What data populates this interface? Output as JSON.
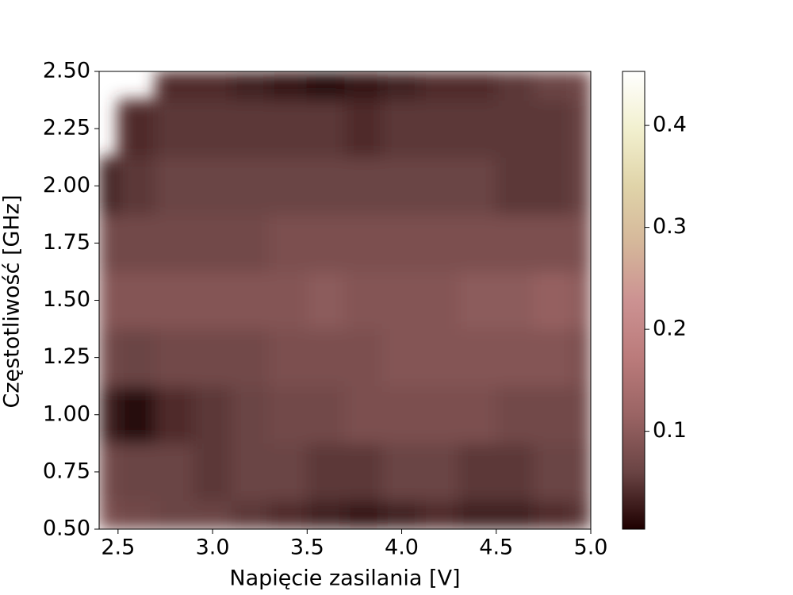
{
  "chart_data": {
    "type": "heatmap",
    "xlabel": "Napięcie zasilania [V]",
    "ylabel": "Częstotliwość [GHz]",
    "x": [
      2.4,
      2.6,
      2.8,
      3.0,
      3.2,
      3.4,
      3.6,
      3.8,
      4.0,
      4.2,
      4.4,
      4.6,
      4.8,
      5.0
    ],
    "y": [
      0.5,
      0.75,
      1.0,
      1.25,
      1.5,
      1.75,
      2.0,
      2.25,
      2.5
    ],
    "z": [
      [
        0.08,
        0.07,
        0.06,
        0.06,
        0.05,
        0.04,
        0.03,
        0.02,
        0.03,
        0.04,
        0.03,
        0.03,
        0.04,
        0.05
      ],
      [
        0.07,
        0.06,
        0.06,
        0.05,
        0.06,
        0.06,
        0.05,
        0.05,
        0.06,
        0.06,
        0.05,
        0.05,
        0.06,
        0.06
      ],
      [
        0.03,
        0.01,
        0.04,
        0.05,
        0.06,
        0.07,
        0.07,
        0.08,
        0.08,
        0.08,
        0.08,
        0.07,
        0.07,
        0.07
      ],
      [
        0.07,
        0.06,
        0.07,
        0.07,
        0.07,
        0.08,
        0.08,
        0.08,
        0.09,
        0.09,
        0.09,
        0.09,
        0.09,
        0.08
      ],
      [
        0.09,
        0.09,
        0.09,
        0.09,
        0.09,
        0.09,
        0.1,
        0.09,
        0.09,
        0.09,
        0.1,
        0.1,
        0.11,
        0.1
      ],
      [
        0.07,
        0.07,
        0.07,
        0.07,
        0.07,
        0.08,
        0.08,
        0.08,
        0.08,
        0.08,
        0.08,
        0.08,
        0.08,
        0.08
      ],
      [
        0.03,
        0.05,
        0.06,
        0.06,
        0.06,
        0.06,
        0.06,
        0.06,
        0.06,
        0.06,
        0.06,
        0.05,
        0.05,
        0.06
      ],
      [
        null,
        0.04,
        0.05,
        0.05,
        0.05,
        0.05,
        0.05,
        0.04,
        0.05,
        0.05,
        0.05,
        0.05,
        0.05,
        0.06
      ],
      [
        null,
        null,
        0.04,
        0.04,
        0.03,
        0.02,
        0.01,
        0.02,
        0.03,
        0.04,
        0.04,
        0.05,
        0.06,
        0.07
      ]
    ],
    "xlim": [
      2.4,
      5.0
    ],
    "ylim": [
      0.5,
      2.5
    ],
    "xticks": [
      2.5,
      {
        "value": 3,
        "label": "3.0"
      },
      3.5,
      {
        "value": 4,
        "label": "4.0"
      },
      4.5,
      {
        "value": 5,
        "label": "5.0"
      }
    ],
    "yticks": [
      {
        "value": 0.5,
        "label": "0.50"
      },
      0.75,
      {
        "value": 1,
        "label": "1.00"
      },
      1.25,
      {
        "value": 1.5,
        "label": "1.50"
      },
      1.75,
      {
        "value": 2,
        "label": "2.00"
      },
      2.25,
      {
        "value": 2.5,
        "label": "2.50"
      }
    ],
    "clim": [
      0.004,
      0.453
    ],
    "cticks": [
      0.1,
      0.2,
      0.3,
      0.4
    ],
    "colormap": [
      "#1e0000",
      "#6a4444",
      "#9a6464",
      "#bb7b7b",
      "#cc9292",
      "#d5b79a",
      "#e0d4a9",
      "#f2f0cf",
      "#ffffff"
    ]
  }
}
